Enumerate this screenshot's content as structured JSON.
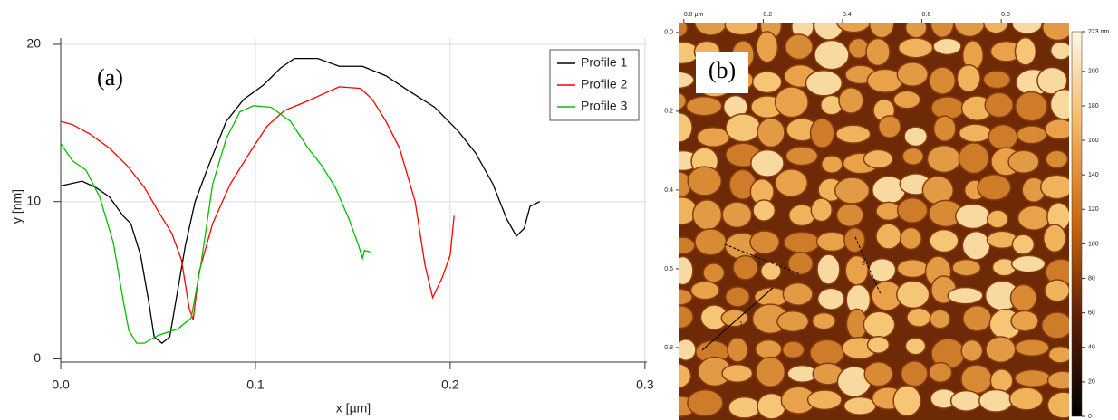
{
  "chart_data": [
    {
      "type": "line",
      "panel_label": "(a)",
      "x_label": "x [µm]",
      "y_label": "y [nm]",
      "xlim": [
        0,
        0.301
      ],
      "ylim": [
        -0.2,
        20.4
      ],
      "xticks": [
        {
          "value": 0,
          "label": "0.0"
        },
        0.1,
        0.2,
        0.3
      ],
      "yticks": [
        0,
        10,
        20
      ],
      "grid": true,
      "legend": "top-right",
      "series": [
        {
          "name": "Profile 1",
          "color": "#000000",
          "x": [
            0,
            0.011,
            0.018,
            0.025,
            0.032,
            0.036,
            0.041,
            0.045,
            0.048,
            0.052,
            0.056,
            0.06,
            0.064,
            0.069,
            0.076,
            0.085,
            0.094,
            0.104,
            0.113,
            0.12,
            0.132,
            0.143,
            0.155,
            0.167,
            0.178,
            0.192,
            0.204,
            0.213,
            0.222,
            0.229,
            0.234,
            0.238,
            0.241,
            0.246
          ],
          "values": [
            11.0,
            11.3,
            10.9,
            10.3,
            9.1,
            8.6,
            6.6,
            3.8,
            1.4,
            1.0,
            1.4,
            4.3,
            7.2,
            10.0,
            12.3,
            15.1,
            16.5,
            17.4,
            18.5,
            19.1,
            19.1,
            18.6,
            18.6,
            18.0,
            17.1,
            16.0,
            14.5,
            13.1,
            11.1,
            8.9,
            7.8,
            8.3,
            9.7,
            10.0
          ]
        },
        {
          "name": "Profile 2",
          "color": "#ff0000",
          "x": [
            0,
            0.006,
            0.015,
            0.025,
            0.034,
            0.043,
            0.05,
            0.057,
            0.062,
            0.066,
            0.068,
            0.071,
            0.078,
            0.087,
            0.097,
            0.106,
            0.115,
            0.125,
            0.134,
            0.143,
            0.154,
            0.16,
            0.167,
            0.174,
            0.182,
            0.187,
            0.191,
            0.196,
            0.2,
            0.202
          ],
          "values": [
            15.1,
            14.9,
            14.3,
            13.4,
            12.3,
            10.9,
            9.4,
            8.0,
            6.3,
            3.2,
            2.5,
            5.5,
            8.6,
            11.1,
            13.1,
            14.8,
            15.8,
            16.3,
            16.8,
            17.3,
            17.2,
            16.5,
            15.1,
            13.4,
            10.0,
            6.0,
            3.9,
            5.2,
            6.6,
            9.1
          ]
        },
        {
          "name": "Profile 3",
          "color": "#00c000",
          "x": [
            0,
            0.006,
            0.013,
            0.02,
            0.027,
            0.032,
            0.035,
            0.039,
            0.043,
            0.05,
            0.06,
            0.067,
            0.072,
            0.078,
            0.085,
            0.092,
            0.099,
            0.108,
            0.118,
            0.127,
            0.134,
            0.141,
            0.148,
            0.153,
            0.155,
            0.156,
            0.159
          ],
          "values": [
            13.7,
            12.6,
            12.0,
            10.3,
            7.4,
            3.8,
            1.8,
            1.0,
            1.0,
            1.5,
            1.9,
            2.6,
            6.0,
            11.1,
            14.0,
            15.7,
            16.1,
            16.0,
            15.1,
            13.4,
            12.3,
            10.9,
            8.9,
            7.2,
            6.4,
            6.9,
            6.8
          ]
        }
      ]
    },
    {
      "type": "image",
      "panel_label": "(b)",
      "xlim": [
        -0.011,
        0.971
      ],
      "ylim": [
        -0.025,
        0.984
      ],
      "xticks": [
        {
          "value": 0,
          "label": "0.0 µm"
        },
        {
          "value": 0.2,
          "label": "0.2"
        },
        {
          "value": 0.4,
          "label": "0.4"
        },
        {
          "value": 0.6,
          "label": "0.6"
        },
        {
          "value": 0.8,
          "label": "0.8"
        }
      ],
      "yticks": [
        {
          "value": 0,
          "label": "0.0"
        },
        {
          "value": 0.2,
          "label": "0.2"
        },
        {
          "value": 0.4,
          "label": "0.4"
        },
        {
          "value": 0.6,
          "label": "0.6"
        },
        {
          "value": 0.8,
          "label": "0.8"
        }
      ],
      "clim": [
        0,
        223
      ],
      "cticks": [
        {
          "value": 223,
          "label": "223 nm"
        },
        200,
        180,
        160,
        140,
        120,
        100,
        80,
        60,
        40,
        20,
        0
      ],
      "profile_markers": [
        "1",
        "2",
        "3"
      ]
    }
  ]
}
